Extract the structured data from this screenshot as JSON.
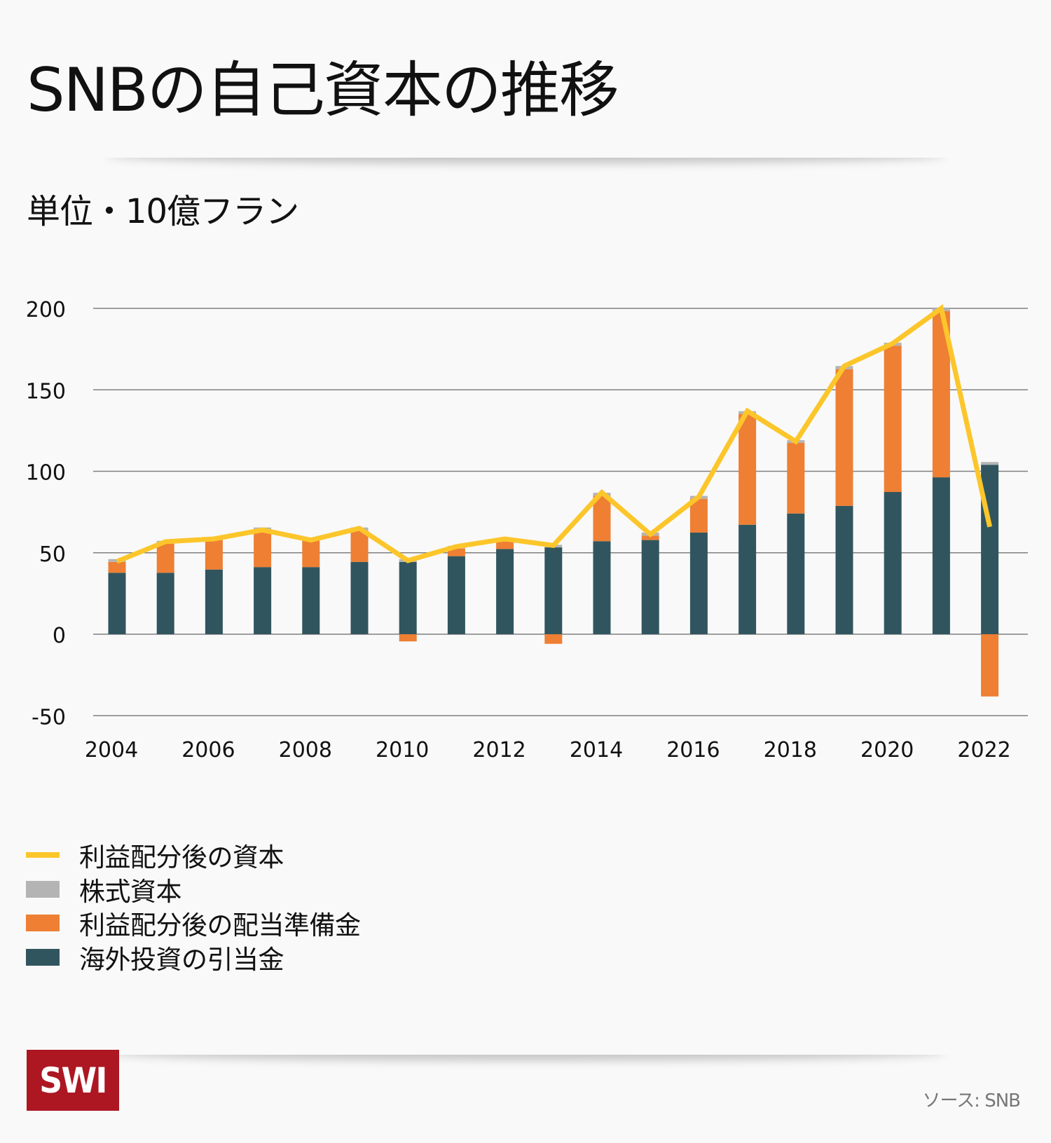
{
  "title": "SNBの自己資本の推移",
  "subtitle": "単位・10億フラン",
  "source": "ソース: SNB",
  "logo_text": "SWI",
  "colors": {
    "line": "#fcc62b",
    "share_capital": "#b4b4b4",
    "distribution_reserve": "#ee7f33",
    "currency_provisions": "#31555e",
    "gridline": "#808080",
    "logo_bg": "#ac1722"
  },
  "legend": [
    {
      "label": "利益配分後の資本",
      "type": "line",
      "color_key": "line"
    },
    {
      "label": "株式資本",
      "type": "box",
      "color_key": "share_capital"
    },
    {
      "label": "利益配分後の配当準備金",
      "type": "box",
      "color_key": "distribution_reserve"
    },
    {
      "label": "海外投資の引当金",
      "type": "box",
      "color_key": "currency_provisions"
    }
  ],
  "chart_data": {
    "type": "bar",
    "stacked": true,
    "title": "SNBの自己資本の推移",
    "ylabel": "単位・10億フラン",
    "xlabel": "",
    "ylim": [
      -50,
      200
    ],
    "yticks": [
      200,
      150,
      100,
      50,
      0,
      -50
    ],
    "grid": true,
    "legend_position": "bottom-left",
    "categories": [
      "2004",
      "2005",
      "2006",
      "2007",
      "2008",
      "2009",
      "2010",
      "2011",
      "2012",
      "2013",
      "2014",
      "2015",
      "2016",
      "2017",
      "2018",
      "2019",
      "2020",
      "2021",
      "2022"
    ],
    "xtick_labels": [
      "2004",
      "2006",
      "2008",
      "2010",
      "2012",
      "2014",
      "2016",
      "2018",
      "2020",
      "2022"
    ],
    "series": [
      {
        "name": "海外投資の引当金",
        "kind": "bar",
        "color_key": "currency_provisions",
        "values": [
          37.7,
          37.7,
          39.7,
          41.2,
          41.2,
          44.4,
          44.4,
          47.9,
          52.3,
          53.3,
          57.1,
          57.8,
          62.4,
          67.2,
          74.1,
          78.8,
          87.3,
          96.3,
          104.0
        ]
      },
      {
        "name": "利益配分後の配当準備金",
        "kind": "bar",
        "color_key": "distribution_reserve",
        "values": [
          6.7,
          17.9,
          18.1,
          22.6,
          16.3,
          19.4,
          -4.4,
          4.7,
          4.6,
          -5.9,
          27.9,
          2.7,
          20.7,
          68.0,
          43.3,
          83.9,
          89.8,
          102.0,
          -38.2
        ]
      },
      {
        "name": "株式資本",
        "kind": "bar",
        "color_key": "share_capital",
        "values": [
          1.7,
          1.7,
          1.7,
          1.7,
          1.7,
          1.7,
          1.7,
          1.6,
          1.6,
          1.6,
          1.8,
          1.9,
          1.8,
          1.7,
          1.7,
          1.9,
          1.8,
          1.7,
          1.7
        ]
      },
      {
        "name": "利益配分後の資本",
        "kind": "line",
        "color_key": "line",
        "values": [
          44.7,
          56.8,
          58.5,
          64.0,
          57.8,
          65.0,
          45.2,
          53.8,
          58.5,
          54.5,
          87.0,
          61.3,
          84.4,
          137.0,
          118.3,
          164.6,
          178.5,
          200.0,
          65.9
        ]
      }
    ]
  }
}
